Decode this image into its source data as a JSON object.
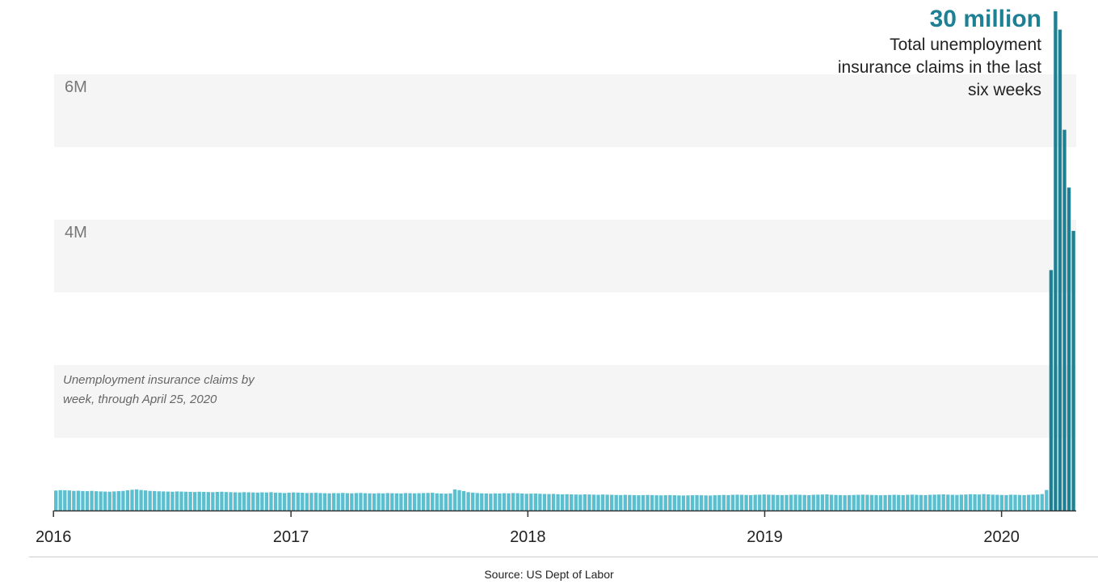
{
  "chart_data": {
    "type": "bar",
    "ylim": [
      0,
      7000000
    ],
    "y_ticks": [
      {
        "value": 4000000,
        "label": "4M"
      },
      {
        "value": 6000000,
        "label": "6M"
      }
    ],
    "x_ticks": [
      "2016",
      "2017",
      "2018",
      "2019",
      "2020"
    ],
    "x_range": [
      "2016-01-02",
      "2020-04-25"
    ],
    "series": [
      {
        "values_note_free": true,
        "baseline_weekly_values": [
          275000,
          280000,
          278000,
          276000,
          270000,
          272000,
          268000,
          266000,
          270000,
          265000,
          262000,
          260000,
          258000,
          262000,
          266000,
          270000,
          278000,
          285000,
          290000,
          282000,
          276000,
          270000,
          268000,
          264000,
          262000,
          260000,
          258000,
          262000,
          260000,
          258000,
          256000,
          254000,
          258000,
          256000,
          254000,
          252000,
          256000,
          258000,
          254000,
          252000,
          250000,
          248000,
          252000,
          250000,
          248000,
          246000,
          250000,
          248000,
          252000,
          246000,
          244000,
          240000,
          245000,
          248000,
          246000,
          244000,
          240000,
          242000,
          244000,
          240000,
          238000,
          236000,
          240000,
          238000,
          242000,
          238000,
          236000,
          240000,
          242000,
          238000,
          236000,
          234000,
          238000,
          236000,
          240000,
          238000,
          236000,
          234000,
          240000,
          238000,
          236000,
          238000,
          240000,
          242000,
          244000,
          236000,
          234000,
          232000,
          236000,
          290000,
          280000,
          268000,
          252000,
          246000,
          240000,
          236000,
          234000,
          232000,
          236000,
          234000,
          238000,
          236000,
          240000,
          238000,
          234000,
          230000,
          232000,
          234000,
          230000,
          228000,
          226000,
          228000,
          224000,
          222000,
          224000,
          222000,
          220000,
          218000,
          222000,
          220000,
          218000,
          216000,
          220000,
          218000,
          216000,
          214000,
          212000,
          216000,
          214000,
          212000,
          210000,
          212000,
          214000,
          212000,
          210000,
          208000,
          210000,
          212000,
          210000,
          208000,
          206000,
          208000,
          210000,
          212000,
          210000,
          208000,
          206000,
          210000,
          212000,
          214000,
          212000,
          216000,
          218000,
          216000,
          214000,
          212000,
          216000,
          218000,
          220000,
          218000,
          216000,
          214000,
          212000,
          214000,
          216000,
          218000,
          216000,
          214000,
          212000,
          216000,
          218000,
          220000,
          222000,
          216000,
          214000,
          212000,
          210000,
          212000,
          214000,
          216000,
          218000,
          216000,
          214000,
          212000,
          210000,
          212000,
          214000,
          216000,
          214000,
          212000,
          216000,
          218000,
          216000,
          214000,
          212000,
          216000,
          218000,
          220000,
          222000,
          218000,
          216000,
          214000,
          218000,
          220000,
          224000,
          222000,
          220000,
          226000,
          222000,
          218000,
          216000,
          214000,
          212000,
          218000,
          216000,
          214000,
          212000,
          216000,
          218000,
          220000,
          226000,
          282000
        ],
        "final_weekly_values": [
          3307000,
          6867000,
          6615000,
          5237000,
          4442000,
          3846000
        ]
      }
    ]
  },
  "callout": {
    "value": "30 million",
    "text": "Total unemployment insurance claims in the last six weeks"
  },
  "note": "Unemployment insurance claims by week, through April 25, 2020",
  "source": "Source:  US Dept of Labor",
  "colors": {
    "bar": "#5bbfcf",
    "bar_highlight": "#1e8193",
    "band": "#f5f5f5",
    "axis": "#333333",
    "tick_label": "#222222",
    "y_label": "#777777",
    "source_rule": "#cccccc"
  }
}
